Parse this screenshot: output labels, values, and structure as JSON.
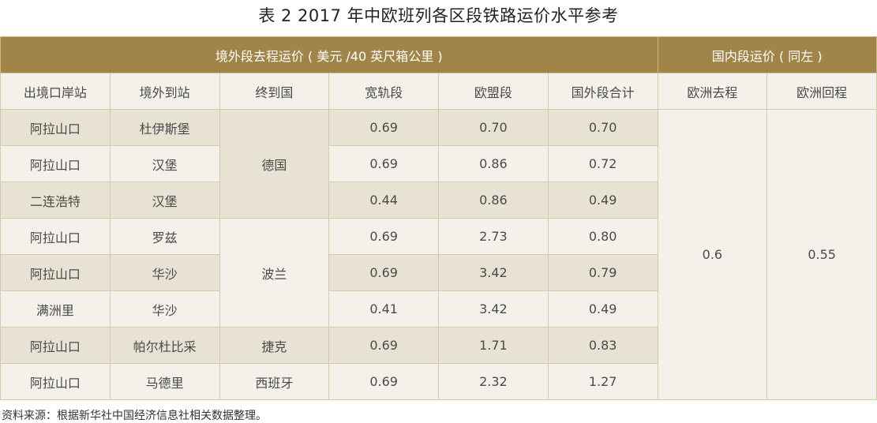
{
  "title": "表 2  2017 年中欧班列各区段铁路运价水平参考",
  "band": {
    "foreign": "境外段去程运价 ( 美元 /40 英尺箱公里 )",
    "domestic": "国内段运价 ( 同左 )"
  },
  "columns": [
    "出境口岸站",
    "境外到站",
    "终到国",
    "宽轨段",
    "欧盟段",
    "国外段合计",
    "欧洲去程",
    "欧洲回程"
  ],
  "rows": [
    [
      "阿拉山口",
      "杜伊斯堡",
      "0.69",
      "0.70",
      "0.70"
    ],
    [
      "阿拉山口",
      "汉堡",
      "0.69",
      "0.86",
      "0.72"
    ],
    [
      "二连浩特",
      "汉堡",
      "0.44",
      "0.86",
      "0.49"
    ],
    [
      "阿拉山口",
      "罗兹",
      "0.69",
      "2.73",
      "0.80"
    ],
    [
      "阿拉山口",
      "华沙",
      "0.69",
      "3.42",
      "0.79"
    ],
    [
      "满洲里",
      "华沙",
      "0.41",
      "3.42",
      "0.49"
    ],
    [
      "阿拉山口",
      "帕尔杜比采",
      "0.69",
      "1.71",
      "0.83"
    ],
    [
      "阿拉山口",
      "马德里",
      "0.69",
      "2.32",
      "1.27"
    ]
  ],
  "countries": [
    "德国",
    "波兰",
    "捷克",
    "西班牙"
  ],
  "domestic": {
    "outbound": "0.6",
    "return": "0.55"
  },
  "source": "资料来源：根据新华社中国经济信息社相关数据整理。",
  "colors": {
    "header": "#a0844a",
    "row_dark": "#e8e2d4",
    "row_light": "#f4f1ea",
    "border": "#d6c9a6"
  }
}
